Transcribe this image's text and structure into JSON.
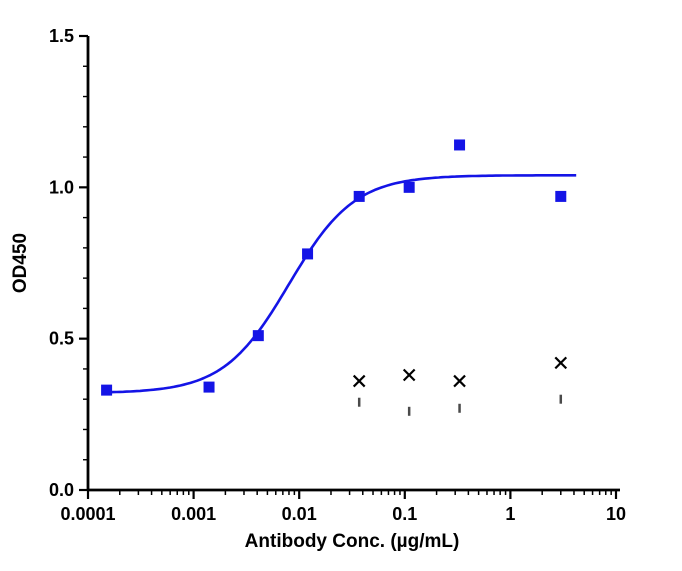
{
  "page": {
    "background": "#ffffff"
  },
  "chart_data": {
    "type": "scatter",
    "title": "",
    "xlabel": "Antibody Conc. (µg/mL)",
    "ylabel": "OD450",
    "x_scale": "log",
    "xlim": [
      0.0001,
      10
    ],
    "ylim": [
      0,
      1.5
    ],
    "x_ticks": [
      0.0001,
      0.001,
      0.01,
      0.1,
      1,
      10
    ],
    "x_tick_labels": [
      "0.0001",
      "0.001",
      "0.01",
      "0.1",
      "1",
      "10"
    ],
    "y_ticks": [
      0,
      0.5,
      1.0,
      1.5
    ],
    "y_tick_labels": [
      "0.0",
      "0.5",
      "1.0",
      "1.5"
    ],
    "grid": false,
    "legend": "none",
    "axis_color": "#000000",
    "series": [
      {
        "name": "antibody-dose-response",
        "marker": "square",
        "marker_size": 11,
        "color": "#1414e6",
        "points": [
          [
            0.00015,
            0.33
          ],
          [
            0.0014,
            0.34
          ],
          [
            0.0041,
            0.51
          ],
          [
            0.012,
            0.78
          ],
          [
            0.037,
            0.97
          ],
          [
            0.11,
            1.0
          ],
          [
            0.33,
            1.14
          ],
          [
            3,
            0.97
          ]
        ],
        "fit_curve": {
          "model": "4PL",
          "bottom": 0.32,
          "top": 1.04,
          "ec50": 0.008,
          "hill": 1.4,
          "x_start": 0.00015,
          "x_end": 4.2
        }
      },
      {
        "name": "control-cross",
        "marker": "x",
        "marker_size": 11,
        "color": "#000000",
        "points": [
          [
            0.037,
            0.36
          ],
          [
            0.11,
            0.38
          ],
          [
            0.33,
            0.36
          ],
          [
            3,
            0.42
          ]
        ]
      },
      {
        "name": "control-dash",
        "marker": "vline",
        "marker_size": 9,
        "color": "#4a4a4a",
        "points": [
          [
            0.037,
            0.29
          ],
          [
            0.11,
            0.26
          ],
          [
            0.33,
            0.27
          ],
          [
            3,
            0.3
          ]
        ]
      }
    ]
  }
}
